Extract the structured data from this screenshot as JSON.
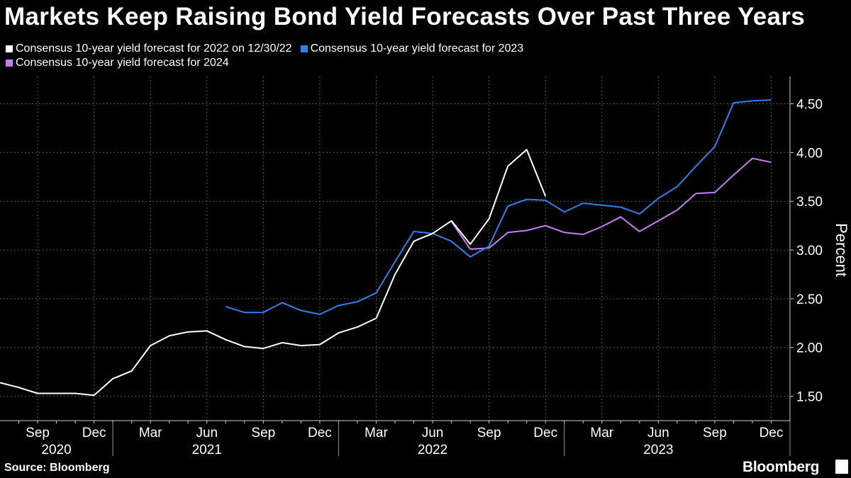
{
  "title": "Markets Keep Raising Bond Yield Forecasts Over Past Three Years",
  "legend": [
    {
      "label": "Consensus 10-year yield forecast for 2022 on 12/30/22",
      "color": "#ffffff"
    },
    {
      "label": "Consensus 10-year yield forecast for 2023",
      "color": "#2f80ed"
    },
    {
      "label": "Consensus 10-year yield forecast for 2024",
      "color": "#c47ef2"
    }
  ],
  "source": "Source: Bloomberg",
  "brand": "Bloomberg",
  "chart_data": {
    "type": "line",
    "ylabel": "Percent",
    "ylim": [
      1.25,
      4.78
    ],
    "yticks": [
      "1.50",
      "2.00",
      "2.50",
      "3.00",
      "3.50",
      "4.00",
      "4.50"
    ],
    "xlim": [
      "2020-07",
      "2024-01"
    ],
    "month_ticks": [
      {
        "date": "2020-09",
        "label": "Sep"
      },
      {
        "date": "2020-12",
        "label": "Dec"
      },
      {
        "date": "2021-03",
        "label": "Mar"
      },
      {
        "date": "2021-06",
        "label": "Jun"
      },
      {
        "date": "2021-09",
        "label": "Sep"
      },
      {
        "date": "2021-12",
        "label": "Dec"
      },
      {
        "date": "2022-03",
        "label": "Mar"
      },
      {
        "date": "2022-06",
        "label": "Jun"
      },
      {
        "date": "2022-09",
        "label": "Sep"
      },
      {
        "date": "2022-12",
        "label": "Dec"
      },
      {
        "date": "2023-03",
        "label": "Mar"
      },
      {
        "date": "2023-06",
        "label": "Jun"
      },
      {
        "date": "2023-09",
        "label": "Sep"
      },
      {
        "date": "2023-12",
        "label": "Dec"
      }
    ],
    "year_ticks": [
      {
        "date": "2020-10",
        "label": "2020"
      },
      {
        "date": "2021-06",
        "label": "2021"
      },
      {
        "date": "2022-06",
        "label": "2022"
      },
      {
        "date": "2023-06",
        "label": "2023"
      }
    ],
    "year_separators": [
      "2021-01",
      "2022-01",
      "2023-01",
      "2024-01"
    ],
    "series": [
      {
        "name": "Consensus 10-year yield forecast for 2022 on 12/30/22",
        "color": "#ffffff",
        "x": [
          "2020-07",
          "2020-08",
          "2020-09",
          "2020-10",
          "2020-11",
          "2020-12",
          "2021-01",
          "2021-02",
          "2021-03",
          "2021-04",
          "2021-05",
          "2021-06",
          "2021-07",
          "2021-08",
          "2021-09",
          "2021-10",
          "2021-11",
          "2021-12",
          "2022-01",
          "2022-02",
          "2022-03",
          "2022-04",
          "2022-05",
          "2022-06",
          "2022-07",
          "2022-08",
          "2022-09",
          "2022-10",
          "2022-11",
          "2022-12"
        ],
        "values": [
          1.64,
          1.59,
          1.53,
          1.53,
          1.53,
          1.51,
          1.68,
          1.76,
          2.02,
          2.12,
          2.16,
          2.17,
          2.08,
          2.01,
          1.99,
          2.05,
          2.02,
          2.03,
          2.15,
          2.21,
          2.3,
          2.75,
          3.09,
          3.17,
          3.3,
          3.06,
          3.32,
          3.86,
          4.03,
          3.55
        ]
      },
      {
        "name": "Consensus 10-year yield forecast for 2023",
        "color": "#2f80ed",
        "x": [
          "2021-07",
          "2021-08",
          "2021-09",
          "2021-10",
          "2021-11",
          "2021-12",
          "2022-01",
          "2022-02",
          "2022-03",
          "2022-04",
          "2022-05",
          "2022-06",
          "2022-07",
          "2022-08",
          "2022-09",
          "2022-10",
          "2022-11",
          "2022-12",
          "2023-01",
          "2023-02",
          "2023-03",
          "2023-04",
          "2023-05",
          "2023-06",
          "2023-07",
          "2023-08",
          "2023-09",
          "2023-10",
          "2023-11",
          "2023-12"
        ],
        "values": [
          2.42,
          2.36,
          2.36,
          2.46,
          2.38,
          2.34,
          2.43,
          2.47,
          2.56,
          2.88,
          3.19,
          3.17,
          3.09,
          2.93,
          3.04,
          3.45,
          3.52,
          3.51,
          3.39,
          3.48,
          3.46,
          3.44,
          3.37,
          3.53,
          3.65,
          3.86,
          4.06,
          4.51,
          4.53,
          4.54
        ]
      },
      {
        "name": "Consensus 10-year yield forecast for 2024",
        "color": "#c47ef2",
        "x": [
          "2022-07",
          "2022-08",
          "2022-09",
          "2022-10",
          "2022-11",
          "2022-12",
          "2023-01",
          "2023-02",
          "2023-03",
          "2023-04",
          "2023-05",
          "2023-06",
          "2023-07",
          "2023-08",
          "2023-09",
          "2023-10",
          "2023-11",
          "2023-12"
        ],
        "values": [
          3.29,
          3.01,
          3.02,
          3.18,
          3.2,
          3.25,
          3.18,
          3.16,
          3.24,
          3.34,
          3.19,
          3.3,
          3.41,
          3.58,
          3.59,
          3.77,
          3.94,
          3.9
        ]
      }
    ]
  }
}
